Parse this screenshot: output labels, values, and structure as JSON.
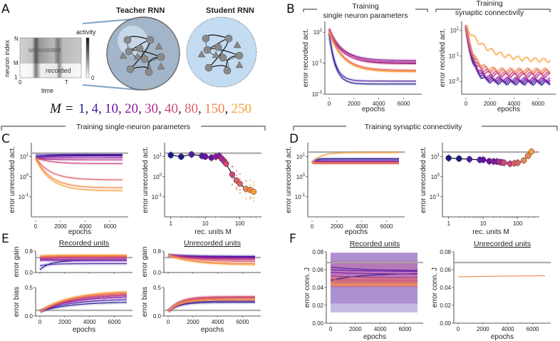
{
  "panel_labels": [
    "A",
    "B",
    "C",
    "D",
    "E",
    "F"
  ],
  "colors": [
    "#1a1a8c",
    "#4b1fa6",
    "#6a11a8",
    "#8b1a9c",
    "#b02e8f",
    "#cc4778",
    "#e0606a",
    "#f2844b",
    "#f89f3a"
  ],
  "gray_line": "#a8a8a8",
  "panelA": {
    "teacher_title": "Teacher RNN",
    "student_title": "Student RNN",
    "raster": {
      "ylabel": "neuron index",
      "xlabel": "time",
      "yticks": [
        "N",
        "M",
        "1"
      ],
      "xticks": [
        "0",
        "T"
      ],
      "unrecorded_label": "unrecorded",
      "recorded_label": "recorded",
      "colorbar_label": "activity",
      "colorbar_min": "0"
    },
    "m_prefix": "M = ",
    "m_values": [
      "1",
      "4",
      "10",
      "20",
      "30",
      "40",
      "80",
      "150",
      "250"
    ]
  },
  "headers": {
    "B_left": [
      "Training",
      "single neuron parameters"
    ],
    "B_right": [
      "Training",
      "synaptic connectivity"
    ],
    "C": "Training single-neuron parameters",
    "D": "Training synaptic connectivity"
  },
  "chart_data": [
    {
      "id": "B-left",
      "type": "line",
      "title": "Training single neuron parameters",
      "xlabel": "epochs",
      "ylabel": "error recorded act.",
      "yscale": "log",
      "xlim": [
        0,
        7000
      ],
      "ylim": [
        0.001,
        50
      ],
      "xticks": [
        "0",
        "2000",
        "4000",
        "6000"
      ],
      "yticks": [
        "10^1",
        "10^-1",
        "10^-3"
      ],
      "series_final_values": {
        "1": 0.0045,
        "4": 0.007,
        "10": 0.1,
        "20": 0.15,
        "30": 0.12,
        "40": 0.09,
        "80": 0.035,
        "150": 0.03,
        "250": 0.028
      }
    },
    {
      "id": "B-right",
      "type": "line",
      "title": "Training synaptic connectivity",
      "xlabel": "epochs",
      "ylabel": "error recorded act.",
      "yscale": "log",
      "xlim": [
        0,
        7000
      ],
      "ylim": [
        0.0001,
        50
      ],
      "xticks": [
        "0",
        "2000",
        "4000",
        "6000"
      ],
      "yticks": [
        "10^1",
        "10^-1",
        "10^-3"
      ],
      "series_final_values": {
        "1": 0.0008,
        "4": 0.001,
        "10": 0.0012,
        "20": 0.0015,
        "30": 0.003,
        "40": 0.004,
        "80": 0.006,
        "150": 0.008,
        "250": 0.04
      }
    },
    {
      "id": "C-left",
      "type": "line",
      "xlabel": "epochs",
      "ylabel": "error unrecorded act.",
      "yscale": "log",
      "xlim": [
        0,
        7000
      ],
      "ylim": [
        0.01,
        50
      ],
      "xticks": [
        "0",
        "2000",
        "4000",
        "6000"
      ],
      "yticks": [
        "10^1",
        "10^0",
        "10^-1"
      ],
      "reference": 15,
      "series_final_values": {
        "1": 12,
        "4": 13,
        "10": 11,
        "20": 9,
        "30": 7,
        "40": 4.5,
        "80": 0.7,
        "150": 0.28,
        "250": 0.2
      }
    },
    {
      "id": "C-right",
      "type": "scatter",
      "xlabel": "rec. units M",
      "ylabel": "error unrecorded act.",
      "xscale": "log",
      "yscale": "log",
      "xlim": [
        0.8,
        350
      ],
      "ylim": [
        0.01,
        50
      ],
      "xticks": [
        "1",
        "10",
        "100"
      ],
      "yticks": [
        "10^1",
        "10^0",
        "10^-1"
      ],
      "reference": 15,
      "x": [
        1,
        2,
        4,
        8,
        10,
        15,
        20,
        25,
        30,
        35,
        40,
        60,
        80,
        100,
        150,
        200,
        250
      ],
      "y": [
        12,
        10,
        13,
        11,
        10,
        9,
        10,
        11,
        8,
        6,
        4.5,
        1.3,
        0.65,
        0.45,
        0.25,
        0.22,
        0.18
      ]
    },
    {
      "id": "D-left",
      "type": "line",
      "xlabel": "epochs",
      "ylabel": "error unrecorded act.",
      "yscale": "log",
      "xlim": [
        0,
        7000
      ],
      "ylim": [
        0.01,
        50
      ],
      "xticks": [
        "0",
        "2000",
        "4000",
        "6000"
      ],
      "yticks": [
        "10^1",
        "10^0",
        "10^-1"
      ],
      "reference": 17,
      "series_final_values": {
        "1": 8,
        "4": 7,
        "10": 6,
        "20": 5.5,
        "30": 5,
        "40": 5,
        "80": 4.5,
        "150": 5,
        "250": 16
      }
    },
    {
      "id": "D-right",
      "type": "scatter",
      "xlabel": "rec. units M",
      "ylabel": "error unrecorded act.",
      "xscale": "log",
      "yscale": "log",
      "xlim": [
        0.8,
        350
      ],
      "ylim": [
        0.01,
        50
      ],
      "xticks": [
        "1",
        "10",
        "100"
      ],
      "yticks": [
        "10^1",
        "10^0",
        "10^-1"
      ],
      "reference": 17,
      "x": [
        1,
        2,
        4,
        8,
        10,
        15,
        20,
        25,
        30,
        35,
        40,
        60,
        80,
        100,
        150,
        200,
        250
      ],
      "y": [
        8.5,
        8,
        7.5,
        7,
        7,
        6,
        5.8,
        5.7,
        5.5,
        5.2,
        5,
        4.5,
        4.7,
        5,
        6.5,
        11,
        18
      ]
    },
    {
      "id": "E-rec-gain",
      "type": "line",
      "title": "Recorded units",
      "ylabel": "error gain",
      "xlim": [
        0,
        7000
      ],
      "ylim": [
        0,
        0.8
      ],
      "yticks": [
        "0.8",
        "0.0"
      ],
      "reference": 0.56,
      "series_final_values": {
        "1": 0.45,
        "4": 0.33,
        "10": 0.45,
        "20": 0.5,
        "30": 0.55,
        "40": 0.57,
        "80": 0.6,
        "150": 0.63,
        "250": 0.65
      }
    },
    {
      "id": "E-rec-bias",
      "type": "line",
      "ylabel": "error bias",
      "xlabel": "epochs",
      "xlim": [
        0,
        7000
      ],
      "ylim": [
        0,
        0.5
      ],
      "xticks": [
        "0",
        "2000",
        "4000",
        "6000"
      ],
      "yticks": [
        "0.5",
        "0.0"
      ],
      "reference": 0.1,
      "series_final_values": {
        "1": 0.25,
        "4": 0.3,
        "10": 0.35,
        "20": 0.35,
        "30": 0.38,
        "40": 0.4,
        "80": 0.42,
        "150": 0.43,
        "250": 0.45
      }
    },
    {
      "id": "E-unrec-gain",
      "type": "line",
      "title": "Unrecorded units",
      "ylabel": "error gain",
      "xlim": [
        0,
        7000
      ],
      "ylim": [
        0,
        0.8
      ],
      "yticks": [
        "0.8",
        "0.0"
      ],
      "reference": 0.56,
      "series_final_values": {
        "1": 0.6,
        "4": 0.58,
        "10": 0.57,
        "20": 0.54,
        "30": 0.5,
        "40": 0.46,
        "80": 0.4,
        "150": 0.32,
        "250": 0.28
      }
    },
    {
      "id": "E-unrec-bias",
      "type": "line",
      "ylabel": "error bias",
      "xlabel": "epochs",
      "xlim": [
        0,
        7000
      ],
      "ylim": [
        0,
        0.5
      ],
      "xticks": [
        "0",
        "2000",
        "4000",
        "6000"
      ],
      "yticks": [
        "0.5",
        "0.0"
      ],
      "reference": 0.1,
      "series_final_values": {
        "1": 0.24,
        "4": 0.26,
        "10": 0.28,
        "20": 0.3,
        "30": 0.32,
        "40": 0.34,
        "80": 0.33,
        "150": 0.3,
        "250": 0.28
      }
    },
    {
      "id": "F-rec",
      "type": "line",
      "title": "Recorded units",
      "ylabel": "error conn. J",
      "xlabel": "epochs",
      "xlim": [
        0,
        7000
      ],
      "ylim": [
        0,
        0.08
      ],
      "xticks": [
        "0",
        "2000",
        "4000",
        "6000"
      ],
      "yticks": [
        "0.08",
        "0.06",
        "0.04",
        "0.02",
        "0.00"
      ],
      "reference": 0.068,
      "series_final_values": {
        "1": 0.056,
        "4": 0.059,
        "10": 0.058,
        "20": 0.055,
        "30": 0.051,
        "40": 0.048,
        "80": 0.046,
        "150": 0.044,
        "250": 0.043
      }
    },
    {
      "id": "F-unrec",
      "type": "line",
      "title": "Unrecorded units",
      "ylabel": "error conn. J",
      "xlabel": "epochs",
      "xlim": [
        0,
        7000
      ],
      "ylim": [
        0,
        0.08
      ],
      "xticks": [
        "0",
        "2000",
        "4000",
        "6000"
      ],
      "yticks": [
        "0.08",
        "0.06",
        "0.04",
        "0.02",
        "0.00"
      ],
      "reference": 0.068,
      "series_final_values": {
        "all": 0.054
      }
    }
  ]
}
